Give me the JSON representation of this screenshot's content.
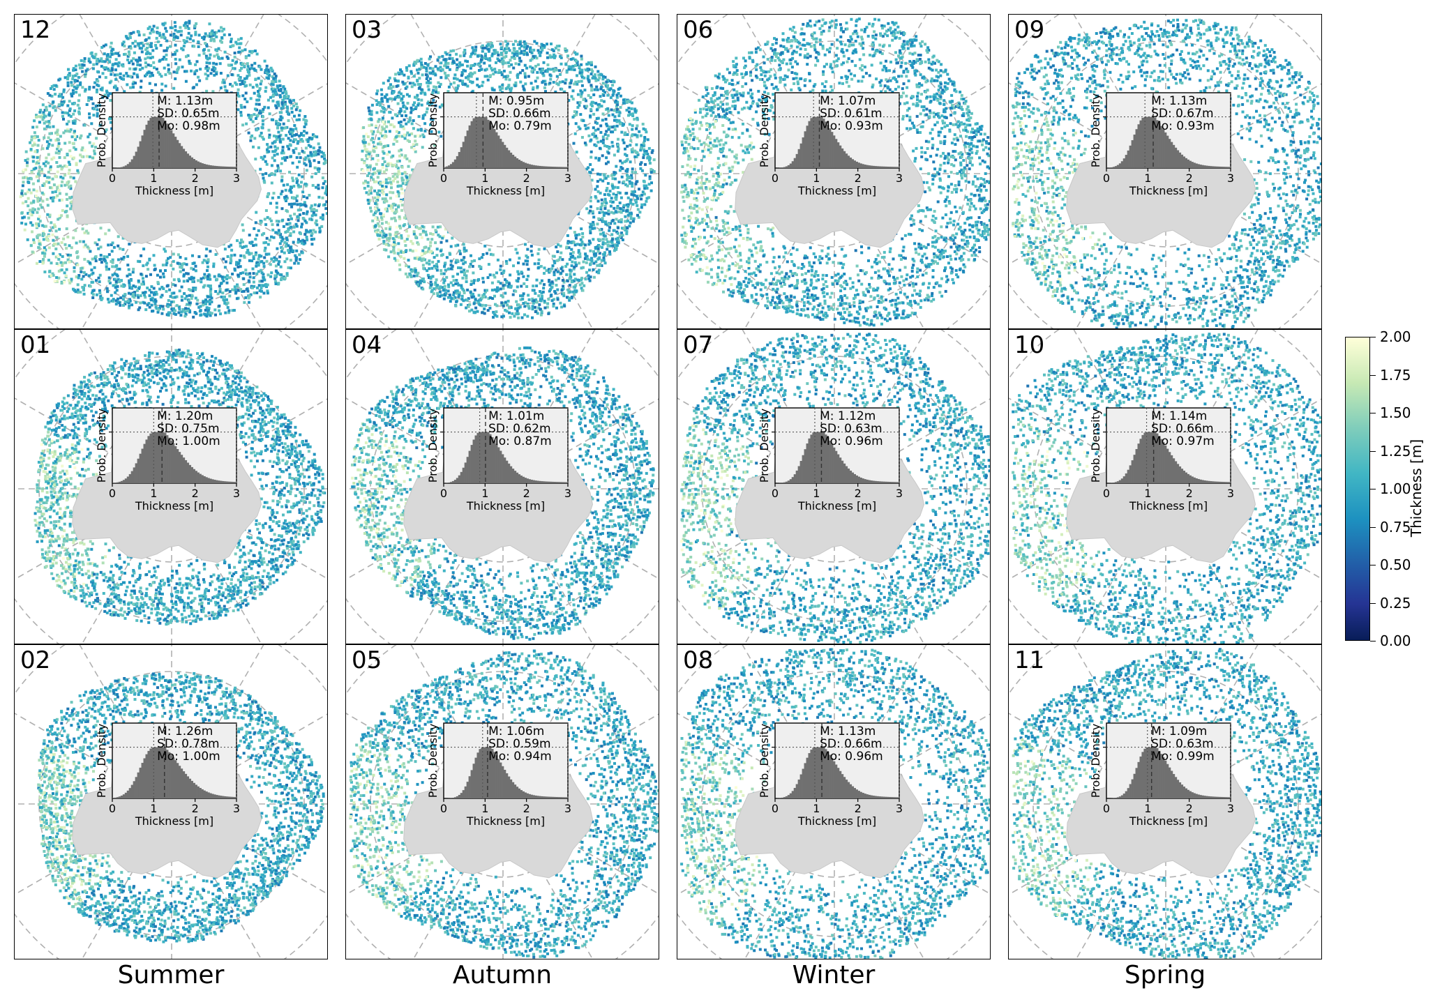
{
  "chart_data": {
    "type": "heatmap",
    "description_type": "grid of 12 polar map panels with histogram insets",
    "grid": {
      "rows": 3,
      "cols": 4
    },
    "seasons": [
      "Summer",
      "Autumn",
      "Winter",
      "Spring"
    ],
    "panels": [
      {
        "month": "12",
        "row": 0,
        "col": 0,
        "stats": {
          "mean": "M: 1.13m",
          "sd": "SD: 0.65m",
          "mode": "Mo: 0.98m"
        },
        "mean_value": 1.13,
        "sd_value": 0.65,
        "mode_value": 0.98,
        "extent": 0.58
      },
      {
        "month": "01",
        "row": 1,
        "col": 0,
        "stats": {
          "mean": "M: 1.20m",
          "sd": "SD: 0.75m",
          "mode": "Mo: 1.00m"
        },
        "mean_value": 1.2,
        "sd_value": 0.75,
        "mode_value": 1.0,
        "extent": 0.45
      },
      {
        "month": "02",
        "row": 2,
        "col": 0,
        "stats": {
          "mean": "M: 1.26m",
          "sd": "SD: 0.78m",
          "mode": "Mo: 1.00m"
        },
        "mean_value": 1.26,
        "sd_value": 0.78,
        "mode_value": 1.0,
        "extent": 0.42
      },
      {
        "month": "03",
        "row": 0,
        "col": 1,
        "stats": {
          "mean": "M: 0.95m",
          "sd": "SD: 0.66m",
          "mode": "Mo: 0.79m"
        },
        "mean_value": 0.95,
        "sd_value": 0.66,
        "mode_value": 0.79,
        "extent": 0.47
      },
      {
        "month": "04",
        "row": 1,
        "col": 1,
        "stats": {
          "mean": "M: 1.01m",
          "sd": "SD: 0.62m",
          "mode": "Mo: 0.87m"
        },
        "mean_value": 1.01,
        "sd_value": 0.62,
        "mode_value": 0.87,
        "extent": 0.53
      },
      {
        "month": "05",
        "row": 2,
        "col": 1,
        "stats": {
          "mean": "M: 1.06m",
          "sd": "SD: 0.59m",
          "mode": "Mo: 0.94m"
        },
        "mean_value": 1.06,
        "sd_value": 0.59,
        "mode_value": 0.94,
        "extent": 0.63
      },
      {
        "month": "06",
        "row": 0,
        "col": 2,
        "stats": {
          "mean": "M: 1.07m",
          "sd": "SD: 0.61m",
          "mode": "Mo: 0.93m"
        },
        "mean_value": 1.07,
        "sd_value": 0.61,
        "mode_value": 0.93,
        "extent": 0.68
      },
      {
        "month": "07",
        "row": 1,
        "col": 2,
        "stats": {
          "mean": "M: 1.12m",
          "sd": "SD: 0.63m",
          "mode": "Mo: 0.96m"
        },
        "mean_value": 1.12,
        "sd_value": 0.63,
        "mode_value": 0.96,
        "extent": 0.73
      },
      {
        "month": "08",
        "row": 2,
        "col": 2,
        "stats": {
          "mean": "M: 1.13m",
          "sd": "SD: 0.66m",
          "mode": "Mo: 0.96m"
        },
        "mean_value": 1.13,
        "sd_value": 0.66,
        "mode_value": 0.96,
        "extent": 0.77
      },
      {
        "month": "09",
        "row": 0,
        "col": 3,
        "stats": {
          "mean": "M: 1.13m",
          "sd": "SD: 0.67m",
          "mode": "Mo: 0.93m"
        },
        "mean_value": 1.13,
        "sd_value": 0.67,
        "mode_value": 0.93,
        "extent": 0.79
      },
      {
        "month": "10",
        "row": 1,
        "col": 3,
        "stats": {
          "mean": "M: 1.14m",
          "sd": "SD: 0.66m",
          "mode": "Mo: 0.97m"
        },
        "mean_value": 1.14,
        "sd_value": 0.66,
        "mode_value": 0.97,
        "extent": 0.77
      },
      {
        "month": "11",
        "row": 2,
        "col": 3,
        "stats": {
          "mean": "M: 1.09m",
          "sd": "SD: 0.63m",
          "mode": "Mo: 0.99m"
        },
        "mean_value": 1.09,
        "sd_value": 0.63,
        "mode_value": 0.99,
        "extent": 0.69
      }
    ],
    "inset": {
      "xlabel": "Thickness [m]",
      "ylabel": "Prob. Density",
      "xticks": [
        "0",
        "1",
        "2",
        "3"
      ],
      "xlim": [
        0,
        3
      ]
    },
    "colorbar": {
      "label": "Thickness [m]",
      "ticks": [
        "0.00",
        "0.25",
        "0.50",
        "0.75",
        "1.00",
        "1.25",
        "1.50",
        "1.75",
        "2.00"
      ],
      "range": [
        0,
        2
      ],
      "colormap": [
        "#081d58",
        "#253494",
        "#225ea8",
        "#1d91c0",
        "#41b6c4",
        "#7fcdbb",
        "#c7e9b4",
        "#ffffd9"
      ]
    },
    "colors": {
      "land": "#d9d9d9",
      "grid": "#b0b0b0",
      "hist": "#707070",
      "inset_bg": "#efefef"
    }
  }
}
